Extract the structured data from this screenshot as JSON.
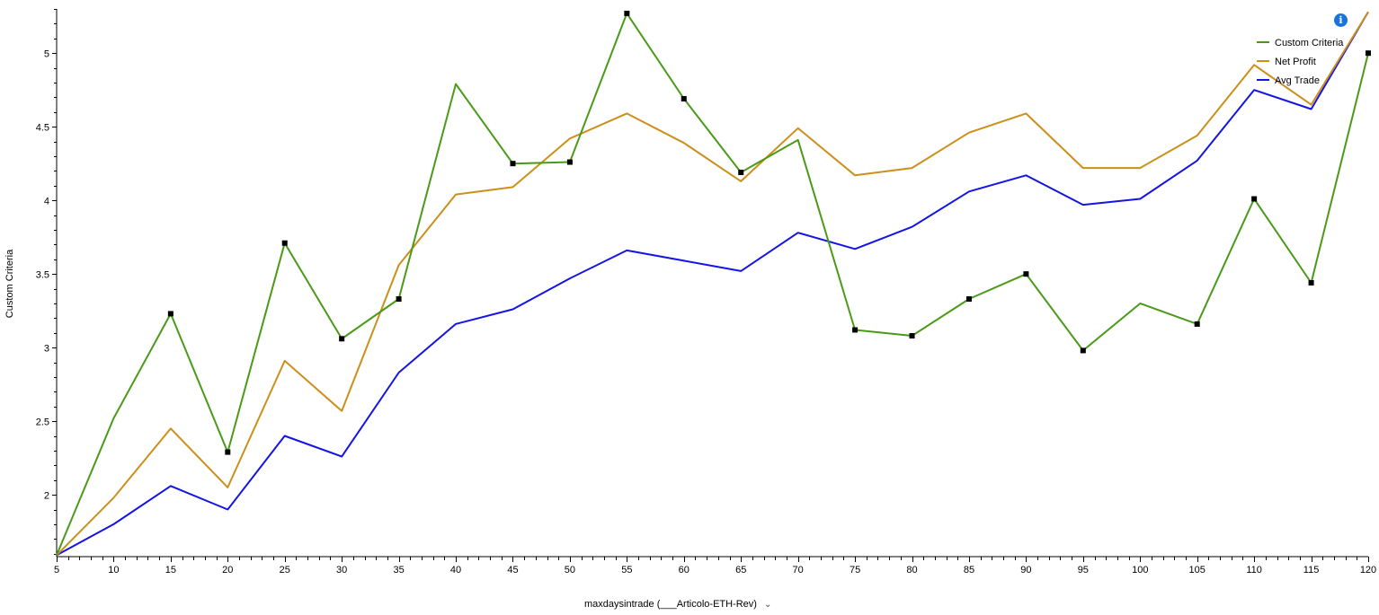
{
  "info_icon": {
    "glyph": "i",
    "color": "#1a73d9"
  },
  "x_selector": {
    "label": "maxdaysintrade (___Articolo-ETH-Rev)",
    "chevron": "⌄"
  },
  "chart_data": {
    "type": "line",
    "title": "",
    "xlabel": "maxdaysintrade (___Articolo-ETH-Rev)",
    "ylabel": "Custom Criteria",
    "xlim": [
      5,
      120
    ],
    "ylim": [
      1.58,
      5.3
    ],
    "x_ticks": [
      5,
      10,
      15,
      20,
      25,
      30,
      35,
      40,
      45,
      50,
      55,
      60,
      65,
      70,
      75,
      80,
      85,
      90,
      95,
      100,
      105,
      110,
      115,
      120
    ],
    "y_ticks": [
      2,
      2.5,
      3,
      3.5,
      4,
      4.5,
      5
    ],
    "y_tick_labels": [
      "2",
      "2.5",
      "3",
      "3.5",
      "4",
      "4.5",
      "5"
    ],
    "grid": false,
    "legend_position": "top-right",
    "x": [
      5,
      10,
      15,
      20,
      25,
      30,
      35,
      40,
      45,
      50,
      55,
      60,
      65,
      70,
      75,
      80,
      85,
      90,
      95,
      100,
      105,
      110,
      115,
      120
    ],
    "series": [
      {
        "name": "Custom Criteria",
        "color": "#4a9a18",
        "marker": "square",
        "markers_at": [
          15,
          20,
          25,
          30,
          35,
          45,
          50,
          55,
          60,
          65,
          75,
          80,
          85,
          90,
          95,
          105,
          110,
          115,
          120
        ],
        "values": [
          1.59,
          2.52,
          3.23,
          2.29,
          3.71,
          3.06,
          3.33,
          4.79,
          4.25,
          4.26,
          5.27,
          4.69,
          4.19,
          4.41,
          3.12,
          3.08,
          3.33,
          3.5,
          2.98,
          3.3,
          3.16,
          4.01,
          3.44,
          5.0
        ]
      },
      {
        "name": "Net Profit",
        "color": "#cc8f1a",
        "values": [
          1.59,
          1.98,
          2.45,
          2.05,
          2.91,
          2.57,
          3.56,
          4.04,
          4.09,
          4.42,
          4.59,
          4.39,
          4.13,
          4.49,
          4.17,
          4.22,
          4.46,
          4.59,
          4.22,
          4.22,
          4.44,
          4.92,
          4.65,
          5.28
        ]
      },
      {
        "name": "Avg Trade",
        "color": "#1414e6",
        "values": [
          1.59,
          1.8,
          2.06,
          1.9,
          2.4,
          2.26,
          2.83,
          3.16,
          3.26,
          3.47,
          3.66,
          3.59,
          3.52,
          3.78,
          3.67,
          3.82,
          4.06,
          4.17,
          3.97,
          4.01,
          4.27,
          4.75,
          4.62,
          5.28
        ]
      }
    ]
  }
}
